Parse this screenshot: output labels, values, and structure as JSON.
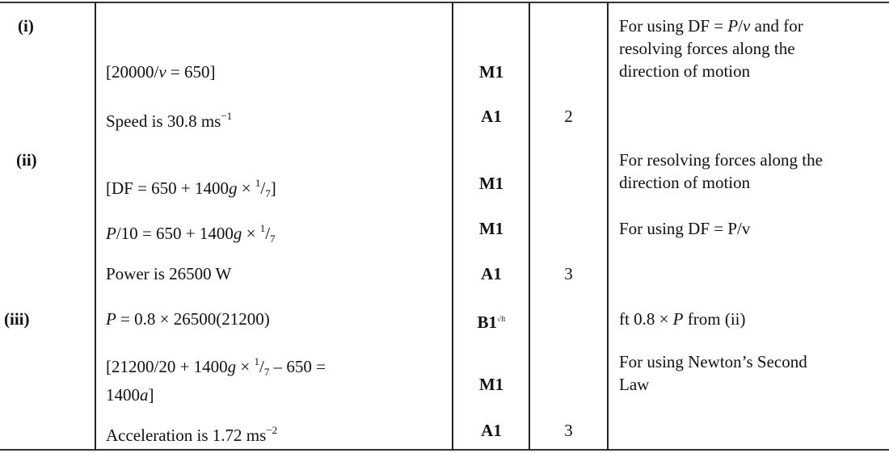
{
  "parts": [
    {
      "label": "(i)",
      "top": "r0"
    },
    {
      "label": "(ii)",
      "top": "r3"
    },
    {
      "label": "(iii)",
      "top": "r7"
    }
  ],
  "rows": [
    {
      "working": [
        [
          {
            "t": "[20000/"
          },
          {
            "t": "v",
            "s": "i"
          },
          {
            "t": " = 650]"
          }
        ]
      ],
      "mark": "M1",
      "total": "",
      "comment": [
        [
          {
            "t": "For using DF = "
          },
          {
            "t": "P",
            "s": "i"
          },
          {
            "t": "/"
          },
          {
            "t": "v",
            "s": "i"
          },
          {
            "t": " and for"
          }
        ],
        [
          {
            "t": "resolving forces along the"
          }
        ],
        [
          {
            "t": "direction of motion"
          }
        ]
      ]
    },
    {
      "working": [
        [
          {
            "t": "Speed is 30.8 ms"
          },
          {
            "t": "−1",
            "s": "sup"
          }
        ]
      ],
      "mark": "A1",
      "total": "2",
      "comment": []
    },
    {
      "working": [
        [
          {
            "t": "[DF = 650 + 1400"
          },
          {
            "t": "g",
            "s": "i"
          },
          {
            "t": " × "
          },
          {
            "t": "1",
            "s": "sup"
          },
          {
            "t": "/"
          },
          {
            "t": "7",
            "s": "sub"
          },
          {
            "t": "]"
          }
        ]
      ],
      "mark": "M1",
      "total": "",
      "comment": [
        [
          {
            "t": "For resolving forces along the"
          }
        ],
        [
          {
            "t": "direction of motion"
          }
        ]
      ]
    },
    {
      "working": [
        [
          {
            "t": "P",
            "s": "i"
          },
          {
            "t": "/10 = 650 + 1400"
          },
          {
            "t": "g",
            "s": "i"
          },
          {
            "t": " × "
          },
          {
            "t": "1",
            "s": "sup"
          },
          {
            "t": "/"
          },
          {
            "t": "7",
            "s": "sub"
          }
        ]
      ],
      "mark": "M1",
      "total": "",
      "comment": [
        [
          {
            "t": "For using DF = P/v"
          }
        ]
      ]
    },
    {
      "working": [
        [
          {
            "t": "Power is 26500 W"
          }
        ]
      ],
      "mark": "A1",
      "total": "3",
      "comment": []
    },
    {
      "working": [
        [
          {
            "t": "P",
            "s": "i"
          },
          {
            "t": " = 0.8 × 26500(21200)"
          }
        ]
      ],
      "mark": "B1",
      "mark_suffix": "√ft",
      "total": "",
      "comment": [
        [
          {
            "t": "ft 0.8 × "
          },
          {
            "t": "P",
            "s": "i"
          },
          {
            "t": " from (ii)"
          }
        ]
      ]
    },
    {
      "working": [
        [
          {
            "t": "[21200/20 + 1400"
          },
          {
            "t": "g",
            "s": "i"
          },
          {
            "t": " × "
          },
          {
            "t": "1",
            "s": "sup"
          },
          {
            "t": "/"
          },
          {
            "t": "7",
            "s": "sub"
          },
          {
            "t": " – 650 ="
          }
        ],
        [
          {
            "t": "1400"
          },
          {
            "t": "a",
            "s": "i"
          },
          {
            "t": "]"
          }
        ]
      ],
      "mark": "M1",
      "total": "",
      "comment": [
        [
          {
            "t": "For using Newton’s Second"
          }
        ],
        [
          {
            "t": "Law"
          }
        ]
      ]
    },
    {
      "working": [
        [
          {
            "t": "Acceleration is 1.72 ms"
          },
          {
            "t": "−2",
            "s": "sup"
          }
        ]
      ],
      "mark": "A1",
      "total": "3",
      "comment": []
    }
  ]
}
